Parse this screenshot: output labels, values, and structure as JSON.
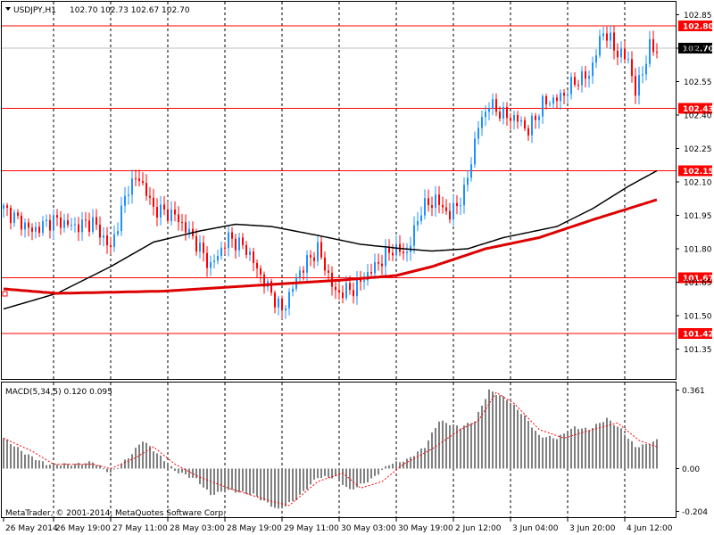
{
  "header": {
    "symbol": "USDJPY,H1",
    "ohlc": "102.70 102.73 102.67 102.70"
  },
  "macd_label": "MACD(5,34,5) 0.120 0.095",
  "copyright": "MetaTrader, © 2001-2014, MetaQuotes Software Corp.",
  "colors": {
    "up": "#1e90ff",
    "down": "#ff0000",
    "hline": "#ff0000",
    "ma_slow": "#000000",
    "ma_fast": "#dd0000",
    "hist": "#808080",
    "signal": "#ff0000",
    "current": "#000000"
  },
  "chart_data": [
    {
      "type": "candlestick",
      "title": "USDJPY,H1",
      "y_ticks": [
        "102.85",
        "102.70",
        "102.55",
        "102.40",
        "102.25",
        "102.10",
        "101.95",
        "101.80",
        "101.65",
        "101.50",
        "101.35"
      ],
      "ylim": [
        101.33,
        102.88
      ],
      "x_ticks": [
        "26 May 2014",
        "26 May 19:00",
        "27 May 11:00",
        "28 May 03:00",
        "28 May 19:00",
        "29 May 11:00",
        "30 May 03:00",
        "30 May 19:00",
        "2 Jun 12:00",
        "3 Jun 04:00",
        "3 Jun 20:00",
        "4 Jun 12:00"
      ],
      "horizontal_levels": [
        {
          "label": "102.80",
          "value": 102.8
        },
        {
          "label": "102.43",
          "value": 102.43
        },
        {
          "label": "102.15",
          "value": 102.15
        },
        {
          "label": "101.67",
          "value": 101.67
        },
        {
          "label": "101.42",
          "value": 101.42
        }
      ],
      "current_price": {
        "label": "102.70",
        "value": 102.7
      },
      "close_path": [
        {
          "i": 0,
          "v": 101.98
        },
        {
          "i": 8,
          "v": 101.88
        },
        {
          "i": 14,
          "v": 101.93
        },
        {
          "i": 20,
          "v": 101.9
        },
        {
          "i": 25,
          "v": 101.92
        },
        {
          "i": 30,
          "v": 101.8
        },
        {
          "i": 35,
          "v": 102.08
        },
        {
          "i": 38,
          "v": 102.12
        },
        {
          "i": 42,
          "v": 101.98
        },
        {
          "i": 48,
          "v": 101.95
        },
        {
          "i": 53,
          "v": 101.85
        },
        {
          "i": 58,
          "v": 101.72
        },
        {
          "i": 63,
          "v": 101.85
        },
        {
          "i": 68,
          "v": 101.8
        },
        {
          "i": 72,
          "v": 101.68
        },
        {
          "i": 78,
          "v": 101.52
        },
        {
          "i": 83,
          "v": 101.7
        },
        {
          "i": 88,
          "v": 101.8
        },
        {
          "i": 93,
          "v": 101.6
        },
        {
          "i": 98,
          "v": 101.62
        },
        {
          "i": 104,
          "v": 101.72
        },
        {
          "i": 109,
          "v": 101.8
        },
        {
          "i": 113,
          "v": 101.78
        },
        {
          "i": 117,
          "v": 101.98
        },
        {
          "i": 121,
          "v": 102.02
        },
        {
          "i": 125,
          "v": 101.95
        },
        {
          "i": 129,
          "v": 102.05
        },
        {
          "i": 133,
          "v": 102.35
        },
        {
          "i": 136,
          "v": 102.45
        },
        {
          "i": 140,
          "v": 102.4
        },
        {
          "i": 144,
          "v": 102.38
        },
        {
          "i": 147,
          "v": 102.33
        },
        {
          "i": 151,
          "v": 102.45
        },
        {
          "i": 156,
          "v": 102.48
        },
        {
          "i": 160,
          "v": 102.55
        },
        {
          "i": 164,
          "v": 102.58
        },
        {
          "i": 168,
          "v": 102.78
        },
        {
          "i": 172,
          "v": 102.68
        },
        {
          "i": 175,
          "v": 102.65
        },
        {
          "i": 177,
          "v": 102.5
        },
        {
          "i": 179,
          "v": 102.6
        },
        {
          "i": 181,
          "v": 102.7
        },
        {
          "i": 183,
          "v": 102.7
        }
      ],
      "ma_slow": [
        {
          "i": 0,
          "v": 101.53
        },
        {
          "i": 15,
          "v": 101.6
        },
        {
          "i": 30,
          "v": 101.72
        },
        {
          "i": 42,
          "v": 101.83
        },
        {
          "i": 55,
          "v": 101.88
        },
        {
          "i": 65,
          "v": 101.91
        },
        {
          "i": 75,
          "v": 101.9
        },
        {
          "i": 88,
          "v": 101.86
        },
        {
          "i": 100,
          "v": 101.82
        },
        {
          "i": 112,
          "v": 101.8
        },
        {
          "i": 120,
          "v": 101.79
        },
        {
          "i": 130,
          "v": 101.8
        },
        {
          "i": 140,
          "v": 101.85
        },
        {
          "i": 155,
          "v": 101.9
        },
        {
          "i": 165,
          "v": 101.98
        },
        {
          "i": 175,
          "v": 102.08
        },
        {
          "i": 183,
          "v": 102.15
        }
      ],
      "ma_fast": [
        {
          "i": 0,
          "v": 101.62
        },
        {
          "i": 15,
          "v": 101.6
        },
        {
          "i": 45,
          "v": 101.61
        },
        {
          "i": 75,
          "v": 101.64
        },
        {
          "i": 95,
          "v": 101.66
        },
        {
          "i": 110,
          "v": 101.68
        },
        {
          "i": 120,
          "v": 101.72
        },
        {
          "i": 135,
          "v": 101.8
        },
        {
          "i": 150,
          "v": 101.85
        },
        {
          "i": 165,
          "v": 101.93
        },
        {
          "i": 183,
          "v": 102.02
        }
      ]
    },
    {
      "type": "bar",
      "title": "MACD(5,34,5) 0.120 0.095",
      "y_ticks": [
        "0.361",
        "0.00",
        "-0.204"
      ],
      "ylim": [
        -0.204,
        0.361
      ],
      "histogram_path": [
        {
          "i": 0,
          "v": 0.14
        },
        {
          "i": 6,
          "v": 0.07
        },
        {
          "i": 12,
          "v": 0.02
        },
        {
          "i": 20,
          "v": 0.02
        },
        {
          "i": 25,
          "v": 0.03
        },
        {
          "i": 30,
          "v": -0.02
        },
        {
          "i": 35,
          "v": 0.05
        },
        {
          "i": 39,
          "v": 0.13
        },
        {
          "i": 43,
          "v": 0.07
        },
        {
          "i": 48,
          "v": -0.01
        },
        {
          "i": 54,
          "v": -0.05
        },
        {
          "i": 58,
          "v": -0.12
        },
        {
          "i": 63,
          "v": -0.1
        },
        {
          "i": 70,
          "v": -0.12
        },
        {
          "i": 77,
          "v": -0.19
        },
        {
          "i": 82,
          "v": -0.14
        },
        {
          "i": 88,
          "v": -0.04
        },
        {
          "i": 93,
          "v": -0.04
        },
        {
          "i": 97,
          "v": -0.1
        },
        {
          "i": 103,
          "v": -0.05
        },
        {
          "i": 108,
          "v": 0.02
        },
        {
          "i": 113,
          "v": 0.04
        },
        {
          "i": 118,
          "v": 0.1
        },
        {
          "i": 122,
          "v": 0.22
        },
        {
          "i": 128,
          "v": 0.19
        },
        {
          "i": 132,
          "v": 0.22
        },
        {
          "i": 136,
          "v": 0.36
        },
        {
          "i": 141,
          "v": 0.32
        },
        {
          "i": 146,
          "v": 0.24
        },
        {
          "i": 150,
          "v": 0.15
        },
        {
          "i": 155,
          "v": 0.14
        },
        {
          "i": 160,
          "v": 0.19
        },
        {
          "i": 164,
          "v": 0.18
        },
        {
          "i": 169,
          "v": 0.23
        },
        {
          "i": 173,
          "v": 0.18
        },
        {
          "i": 177,
          "v": 0.1
        },
        {
          "i": 180,
          "v": 0.11
        },
        {
          "i": 183,
          "v": 0.13
        }
      ],
      "signal_path": [
        {
          "i": 0,
          "v": 0.14
        },
        {
          "i": 8,
          "v": 0.08
        },
        {
          "i": 14,
          "v": 0.02
        },
        {
          "i": 25,
          "v": 0.02
        },
        {
          "i": 30,
          "v": 0.0
        },
        {
          "i": 37,
          "v": 0.05
        },
        {
          "i": 42,
          "v": 0.1
        },
        {
          "i": 48,
          "v": 0.02
        },
        {
          "i": 55,
          "v": -0.04
        },
        {
          "i": 63,
          "v": -0.09
        },
        {
          "i": 75,
          "v": -0.15
        },
        {
          "i": 80,
          "v": -0.17
        },
        {
          "i": 88,
          "v": -0.06
        },
        {
          "i": 95,
          "v": -0.02
        },
        {
          "i": 100,
          "v": -0.09
        },
        {
          "i": 106,
          "v": -0.06
        },
        {
          "i": 112,
          "v": 0.02
        },
        {
          "i": 120,
          "v": 0.09
        },
        {
          "i": 128,
          "v": 0.18
        },
        {
          "i": 133,
          "v": 0.22
        },
        {
          "i": 138,
          "v": 0.35
        },
        {
          "i": 143,
          "v": 0.3
        },
        {
          "i": 150,
          "v": 0.18
        },
        {
          "i": 157,
          "v": 0.14
        },
        {
          "i": 163,
          "v": 0.17
        },
        {
          "i": 172,
          "v": 0.21
        },
        {
          "i": 178,
          "v": 0.13
        },
        {
          "i": 183,
          "v": 0.1
        }
      ]
    }
  ]
}
